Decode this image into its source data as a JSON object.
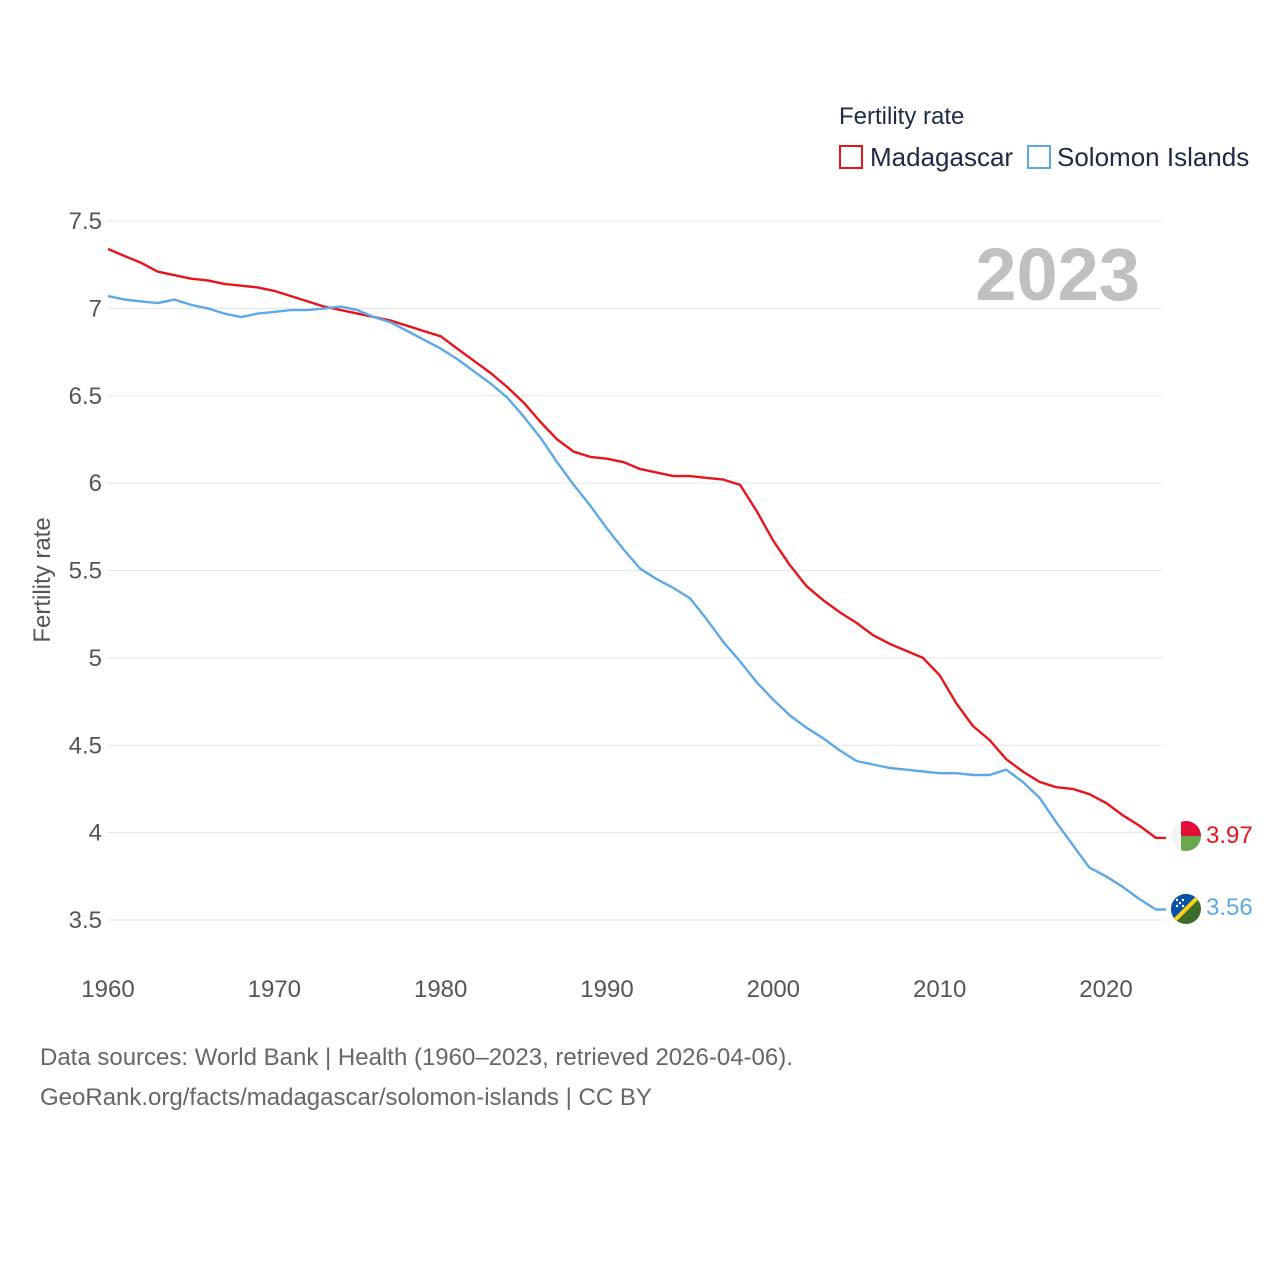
{
  "chart_data": {
    "type": "line",
    "title": "",
    "legend_title": "Fertility rate",
    "legend_position": "top-right",
    "year_label": "2023",
    "xlabel": "",
    "ylabel": "Fertility rate",
    "xlim": [
      1960,
      2023
    ],
    "ylim": [
      3.5,
      7.5
    ],
    "y_ticks": [
      {
        "value": 7.5,
        "label": "7.5"
      },
      {
        "value": 7,
        "label": "7"
      },
      {
        "value": 6.5,
        "label": "6.5"
      },
      {
        "value": 6,
        "label": "6"
      },
      {
        "value": 5.5,
        "label": "5.5"
      },
      {
        "value": 5,
        "label": "5"
      },
      {
        "value": 4.5,
        "label": "4.5"
      },
      {
        "value": 4,
        "label": "4"
      },
      {
        "value": 3.5,
        "label": "3.5"
      }
    ],
    "x_ticks": [
      {
        "value": 1960,
        "label": "1960"
      },
      {
        "value": 1970,
        "label": "1970"
      },
      {
        "value": 1980,
        "label": "1980"
      },
      {
        "value": 1990,
        "label": "1990"
      },
      {
        "value": 2000,
        "label": "2000"
      },
      {
        "value": 2010,
        "label": "2010"
      },
      {
        "value": 2020,
        "label": "2020"
      }
    ],
    "grid": true,
    "x": [
      1960,
      1961,
      1962,
      1963,
      1964,
      1965,
      1966,
      1967,
      1968,
      1969,
      1970,
      1971,
      1972,
      1973,
      1974,
      1975,
      1976,
      1977,
      1978,
      1979,
      1980,
      1981,
      1982,
      1983,
      1984,
      1985,
      1986,
      1987,
      1988,
      1989,
      1990,
      1991,
      1992,
      1993,
      1994,
      1995,
      1996,
      1997,
      1998,
      1999,
      2000,
      2001,
      2002,
      2003,
      2004,
      2005,
      2006,
      2007,
      2008,
      2009,
      2010,
      2011,
      2012,
      2013,
      2014,
      2015,
      2016,
      2017,
      2018,
      2019,
      2020,
      2021,
      2022,
      2023
    ],
    "series": [
      {
        "name": "Madagascar",
        "color": "#e8141c",
        "end_label": "3.97",
        "values": [
          7.34,
          7.3,
          7.26,
          7.21,
          7.19,
          7.17,
          7.16,
          7.14,
          7.13,
          7.12,
          7.1,
          7.07,
          7.04,
          7.01,
          6.99,
          6.97,
          6.95,
          6.93,
          6.9,
          6.87,
          6.84,
          6.77,
          6.7,
          6.63,
          6.55,
          6.46,
          6.35,
          6.25,
          6.18,
          6.15,
          6.14,
          6.12,
          6.08,
          6.06,
          6.04,
          6.04,
          6.03,
          6.02,
          5.99,
          5.84,
          5.67,
          5.53,
          5.41,
          5.33,
          5.26,
          5.2,
          5.13,
          5.08,
          5.04,
          5.0,
          4.9,
          4.74,
          4.61,
          4.53,
          4.42,
          4.35,
          4.29,
          4.26,
          4.25,
          4.22,
          4.17,
          4.1,
          4.04,
          3.97
        ]
      },
      {
        "name": "Solomon Islands",
        "color": "#5ca8e8",
        "end_label": "3.56",
        "values": [
          7.07,
          7.05,
          7.04,
          7.03,
          7.05,
          7.02,
          7.0,
          6.97,
          6.95,
          6.97,
          6.98,
          6.99,
          6.99,
          7.0,
          7.01,
          6.99,
          6.95,
          6.92,
          6.87,
          6.82,
          6.77,
          6.71,
          6.64,
          6.57,
          6.49,
          6.38,
          6.26,
          6.12,
          5.99,
          5.87,
          5.74,
          5.62,
          5.51,
          5.45,
          5.4,
          5.34,
          5.22,
          5.09,
          4.98,
          4.86,
          4.76,
          4.67,
          4.6,
          4.54,
          4.47,
          4.41,
          4.39,
          4.37,
          4.36,
          4.35,
          4.34,
          4.34,
          4.33,
          4.33,
          4.36,
          4.29,
          4.2,
          4.06,
          3.93,
          3.8,
          3.75,
          3.69,
          3.62,
          3.56
        ]
      }
    ]
  },
  "footer": {
    "sources": "Data sources: World Bank | Health (1960–2023, retrieved 2026-04-06).",
    "link": "GeoRank.org/facts/madagascar/solomon-islands | CC BY"
  },
  "flags": {
    "madagascar": {
      "white": "#f4f4f4",
      "red": "#e0103a",
      "green": "#6aa84f"
    },
    "solomon_islands": {
      "blue": "#0a4fa8",
      "green": "#3e6b2a",
      "yellow": "#fcd116"
    }
  }
}
